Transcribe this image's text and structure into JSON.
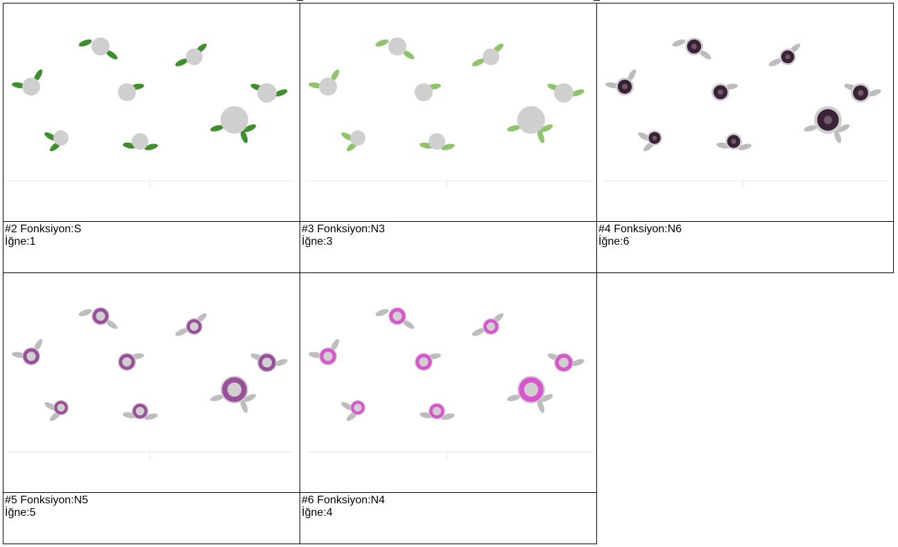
{
  "cells": [
    {
      "caption_line1": "#2 Fonksiyon:S",
      "caption_line2": "İğne:1",
      "step": "leaves",
      "thread_color": "#3f8f2e"
    },
    {
      "caption_line1": "#3 Fonksiyon:N3",
      "caption_line2": "İğne:3",
      "step": "leaves",
      "thread_color": "#8fc46a"
    },
    {
      "caption_line1": "#4 Fonksiyon:N6",
      "caption_line2": "İğne:6",
      "step": "dark-center",
      "thread_color": "#3b2337"
    },
    {
      "caption_line1": "#5 Fonksiyon:N5",
      "caption_line2": "İğne:5",
      "step": "ring",
      "thread_color": "#9a4f9a"
    },
    {
      "caption_line1": "#6 Fonksiyon:N4",
      "caption_line2": "İğne:4",
      "step": "ring",
      "thread_color": "#d855cf"
    }
  ],
  "colors": {
    "base": "#cfcfcf",
    "grey_leaf": "#bdbdbd"
  }
}
